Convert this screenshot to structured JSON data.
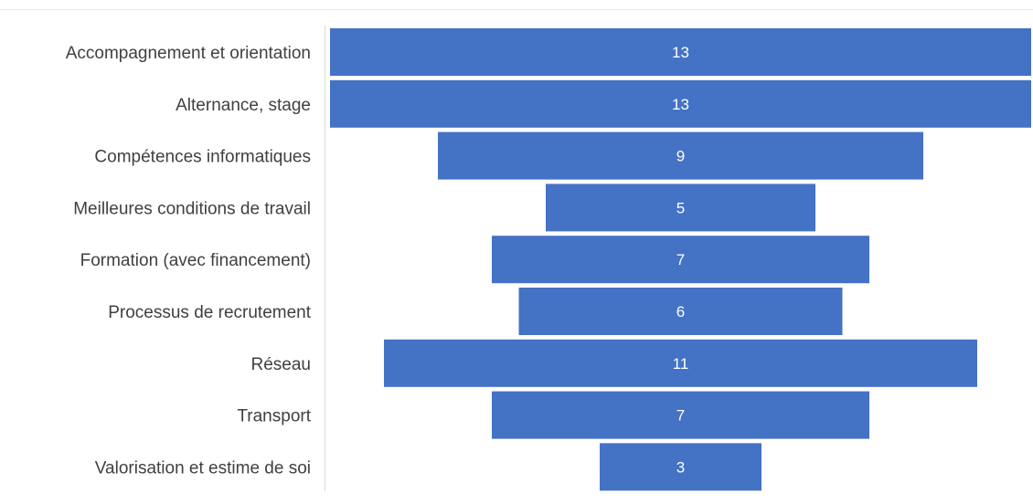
{
  "chart_data": {
    "type": "bar",
    "orientation": "horizontal-centered",
    "categories": [
      "Accompagnement et orientation",
      "Alternance, stage",
      "Compétences informatiques",
      "Meilleures conditions de travail",
      "Formation (avec financement)",
      "Processus de recrutement",
      "Réseau",
      "Transport",
      "Valorisation et estime de soi"
    ],
    "values": [
      13,
      13,
      9,
      5,
      7,
      6,
      11,
      7,
      3
    ],
    "data_labels": [
      "13",
      "13",
      "9",
      "5",
      "7",
      "6",
      "11",
      "7",
      "3"
    ],
    "title": "",
    "xlabel": "",
    "ylabel": "",
    "xlim": [
      0,
      13
    ],
    "grid": false,
    "legend": "none",
    "colors": {
      "bar": "#4472C4",
      "bar_label": "#FFFFFF",
      "category_label": "#404040",
      "axis_line": "#D9D9D9",
      "frame_line": "#E6E6E6"
    }
  }
}
